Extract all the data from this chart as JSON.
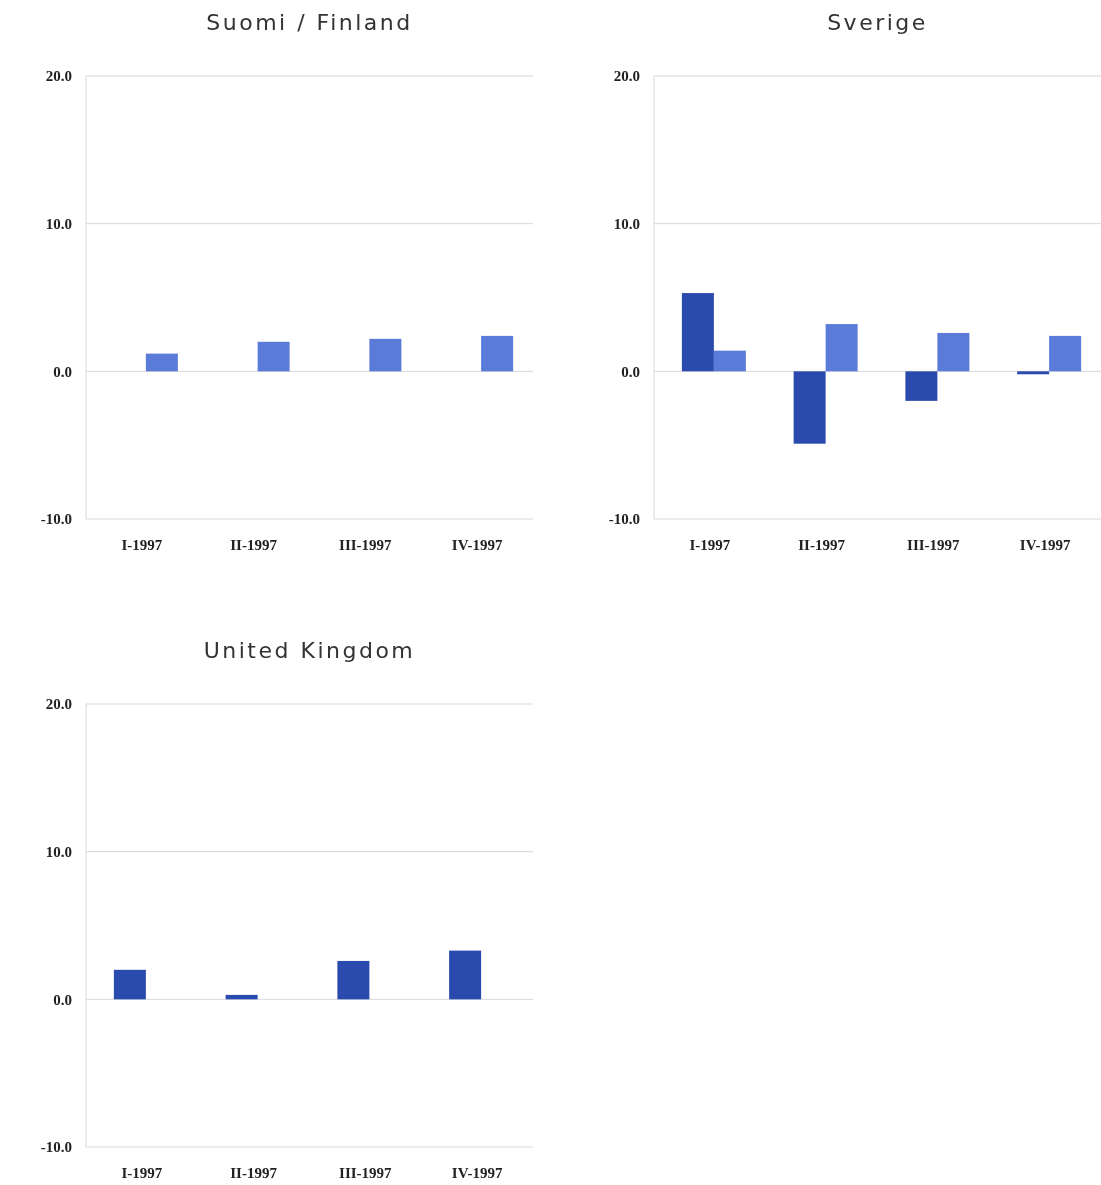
{
  "chart_data": [
    {
      "type": "bar",
      "title": "Suomi / Finland",
      "categories": [
        "I-1997",
        "II-1997",
        "III-1997",
        "IV-1997"
      ],
      "series": [
        {
          "values": [
            null,
            null,
            null,
            null
          ]
        },
        {
          "color": "#5b7bd9",
          "values": [
            1.2,
            2.0,
            2.2,
            2.4
          ]
        }
      ],
      "ylim": [
        -10,
        20
      ],
      "yticks": [
        {
          "value": -10,
          "label": "-10.0"
        },
        {
          "value": 0,
          "label": "0.0"
        },
        {
          "value": 10,
          "label": "10.0"
        },
        {
          "value": 20,
          "label": "20.0"
        }
      ],
      "grid": "y"
    },
    {
      "type": "bar",
      "title": "Sverige",
      "categories": [
        "I-1997",
        "II-1997",
        "III-1997",
        "IV-1997"
      ],
      "series": [
        {
          "color": "#2b4aad",
          "values": [
            5.3,
            -4.9,
            -2.0,
            -0.2
          ]
        },
        {
          "color": "#5b7bd9",
          "values": [
            1.4,
            3.2,
            2.6,
            2.4
          ]
        }
      ],
      "ylim": [
        -10,
        20
      ],
      "yticks": [
        {
          "value": -10,
          "label": "-10.0"
        },
        {
          "value": 0,
          "label": "0.0"
        },
        {
          "value": 10,
          "label": "10.0"
        },
        {
          "value": 20,
          "label": "20.0"
        }
      ],
      "grid": "y"
    },
    {
      "type": "bar",
      "title": "United Kingdom",
      "categories": [
        "I-1997",
        "II-1997",
        "III-1997",
        "IV-1997"
      ],
      "series": [
        {
          "color": "#2b4aad",
          "values": [
            2.0,
            0.3,
            2.6,
            3.3
          ]
        },
        {
          "values": [
            null,
            null,
            null,
            null
          ]
        }
      ],
      "ylim": [
        -10,
        20
      ],
      "yticks": [
        {
          "value": -10,
          "label": "-10.0"
        },
        {
          "value": 0,
          "label": "0.0"
        },
        {
          "value": 10,
          "label": "10.0"
        },
        {
          "value": 20,
          "label": "20.0"
        }
      ],
      "grid": "y"
    }
  ]
}
